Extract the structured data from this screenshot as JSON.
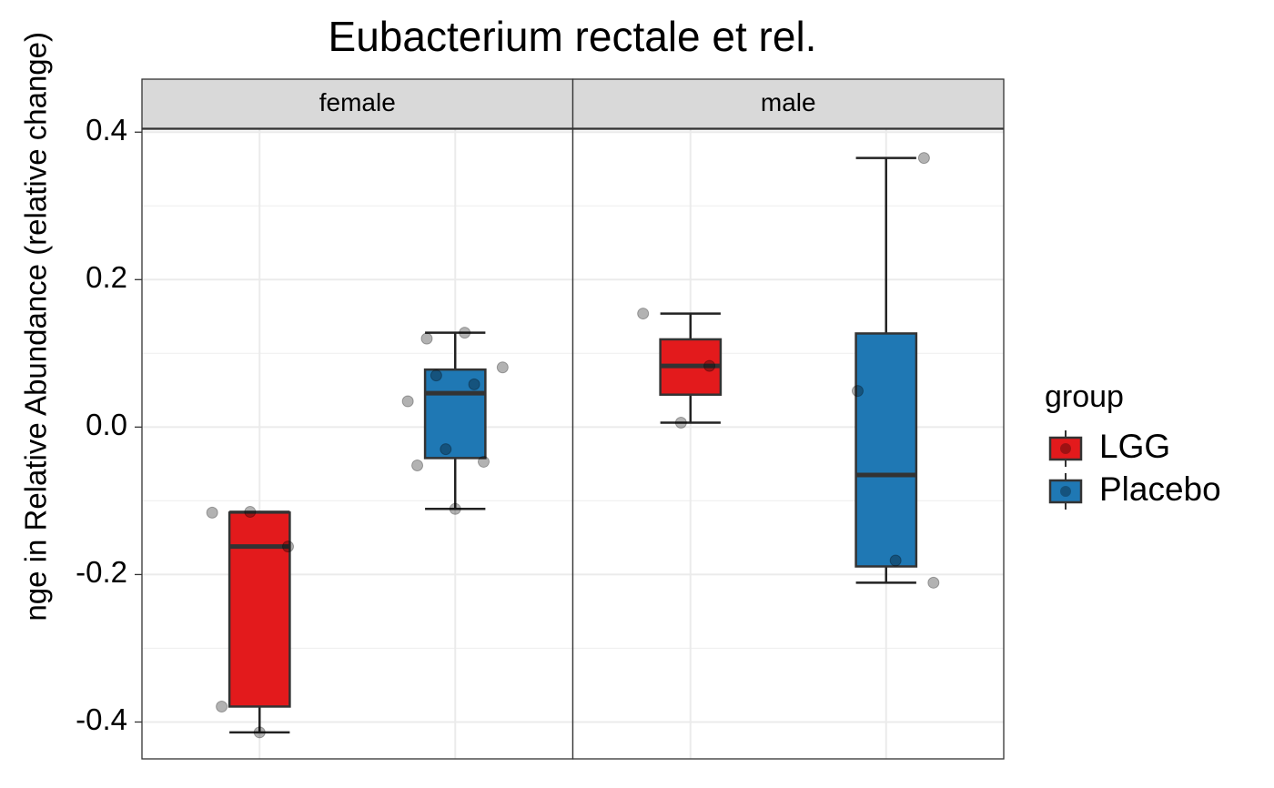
{
  "chart_data": {
    "type": "boxplot",
    "title": "Eubacterium rectale et rel.",
    "y_label": "nge in Relative Abundance (relative change)",
    "legend_title": "group",
    "series": [
      {
        "name": "LGG",
        "color": "#e31a1c"
      },
      {
        "name": "Placebo",
        "color": "#1f78b4"
      }
    ],
    "panels": [
      {
        "name": "female",
        "boxes": [
          {
            "whisker_low": -0.414,
            "q1": -0.379,
            "median": -0.162,
            "q3": -0.116,
            "whisker_high": -0.115,
            "points": [
              -0.116,
              -0.115,
              -0.162,
              -0.379,
              -0.414
            ]
          },
          {
            "whisker_low": -0.111,
            "q1": -0.042,
            "median": 0.046,
            "q3": 0.078,
            "whisker_high": 0.128,
            "points": [
              0.12,
              0.128,
              0.081,
              0.07,
              0.058,
              0.035,
              -0.03,
              -0.047,
              -0.052,
              -0.111
            ]
          }
        ]
      },
      {
        "name": "male",
        "boxes": [
          {
            "whisker_low": 0.006,
            "q1": 0.044,
            "median": 0.083,
            "q3": 0.119,
            "whisker_high": 0.154,
            "points": [
              0.083,
              0.154,
              0.006
            ]
          },
          {
            "whisker_low": -0.211,
            "q1": -0.189,
            "median": -0.065,
            "q3": 0.127,
            "whisker_high": 0.365,
            "points": [
              0.365,
              0.049,
              -0.181,
              -0.211
            ]
          }
        ]
      }
    ],
    "ylim": [
      -0.45,
      0.404
    ],
    "yticks": [
      -0.4,
      -0.2,
      {
        "value": 0,
        "label": "0.0"
      },
      0.2,
      0.4
    ],
    "minor_yticks": [
      -0.3,
      -0.1,
      0.1,
      0.3
    ],
    "grid": true
  }
}
